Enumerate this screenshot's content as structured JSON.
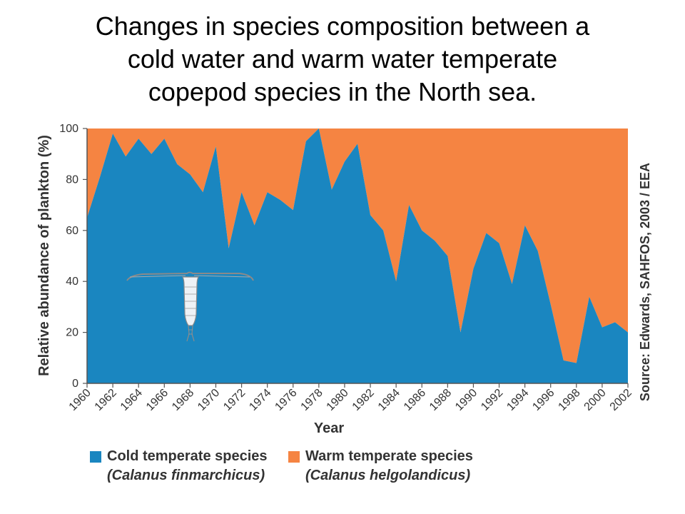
{
  "title": {
    "line1": "Changes in species composition between a",
    "line2": "cold water and warm water temperate",
    "line3": "copepod species in the North sea."
  },
  "source": "Source: Edwards, SAHFOS, 2003 / EEA",
  "colors": {
    "cold": "#1a86c0",
    "warm": "#f58442",
    "axis": "#555555"
  },
  "legend": {
    "cold": {
      "name": "Cold temperate species",
      "latin": "(Calanus finmarchicus)"
    },
    "warm": {
      "name": "Warm temperate species",
      "latin": "(Calanus helgolandicus)"
    }
  },
  "illustration": "copepod-illustration",
  "chart_data": {
    "type": "area",
    "xlabel": "Year",
    "ylabel": "Relative abundance of plankton (%)",
    "xlim": [
      1960,
      2002
    ],
    "ylim": [
      0,
      100
    ],
    "xticks": [
      1960,
      1962,
      1964,
      1966,
      1968,
      1970,
      1972,
      1974,
      1976,
      1978,
      1980,
      1982,
      1984,
      1986,
      1988,
      1990,
      1992,
      1994,
      1996,
      1998,
      2000,
      2002
    ],
    "yticks": [
      0,
      20,
      40,
      60,
      80,
      100
    ],
    "stacked": true,
    "x": [
      1960,
      1961,
      1962,
      1963,
      1964,
      1965,
      1966,
      1967,
      1968,
      1969,
      1970,
      1971,
      1972,
      1973,
      1974,
      1975,
      1976,
      1977,
      1978,
      1979,
      1980,
      1981,
      1982,
      1983,
      1984,
      1985,
      1986,
      1987,
      1988,
      1989,
      1990,
      1991,
      1992,
      1993,
      1994,
      1995,
      1996,
      1997,
      1998,
      1999,
      2000,
      2001,
      2002
    ],
    "series": [
      {
        "name": "Cold temperate species",
        "values": [
          65,
          81,
          98,
          89,
          96,
          90,
          96,
          86,
          82,
          75,
          93,
          53,
          75,
          62,
          75,
          72,
          68,
          95,
          100,
          76,
          87,
          94,
          66,
          60,
          40,
          70,
          60,
          56,
          50,
          20,
          45,
          59,
          55,
          39,
          62,
          52,
          31,
          9,
          8,
          34,
          22,
          24,
          20
        ]
      },
      {
        "name": "Warm temperate species",
        "values": [
          35,
          19,
          2,
          11,
          4,
          10,
          4,
          14,
          18,
          25,
          7,
          47,
          25,
          38,
          25,
          28,
          32,
          5,
          0,
          24,
          13,
          6,
          34,
          40,
          60,
          30,
          40,
          44,
          50,
          80,
          55,
          41,
          45,
          61,
          38,
          48,
          69,
          91,
          92,
          66,
          78,
          76,
          80
        ]
      }
    ]
  }
}
